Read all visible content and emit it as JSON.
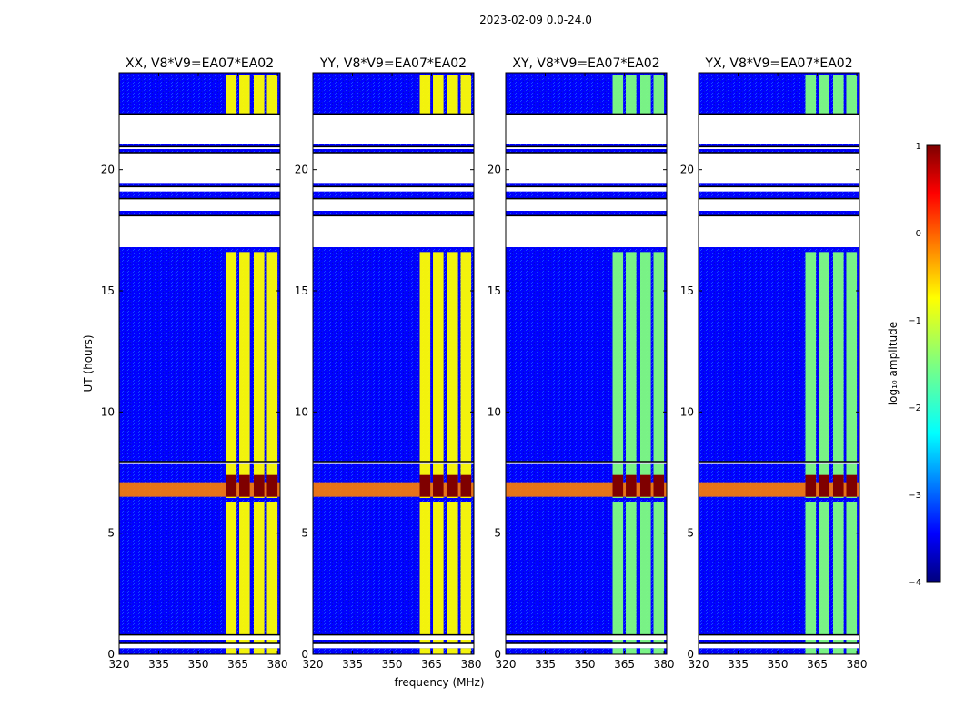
{
  "figure": {
    "suptitle": "2023-02-09 0.0-24.0",
    "xlabel": "frequency (MHz)",
    "ylabel": "UT (hours)"
  },
  "chart_data": {
    "type": "heatmap",
    "title": "2023-02-09 0.0-24.0",
    "xlabel": "frequency (MHz)",
    "ylabel": "UT (hours)",
    "xlim": [
      320,
      381
    ],
    "ylim": [
      0,
      24
    ],
    "xticks": [
      320,
      335,
      350,
      365,
      380
    ],
    "yticks": [
      0,
      5,
      10,
      15,
      20
    ],
    "panels": [
      {
        "title": "XX, V8*V9=EA07*EA02",
        "band_level": -1.1
      },
      {
        "title": "YY, V8*V9=EA07*EA02",
        "band_level": -0.6
      },
      {
        "title": "XY, V8*V9=EA07*EA02",
        "band_level": -1.3
      },
      {
        "title": "YX, V8*V9=EA07*EA02",
        "band_level": -1.4
      }
    ],
    "background_level": -3.2,
    "band_frequencies_mhz": [
      [
        360.5,
        364.5
      ],
      [
        365.5,
        369.5
      ],
      [
        371,
        375
      ],
      [
        376,
        380
      ]
    ],
    "band_active_hours": [
      [
        0,
        0.25
      ],
      [
        0.45,
        0.6
      ],
      [
        0.8,
        6.3
      ],
      [
        6.45,
        7.85
      ],
      [
        7.95,
        16.6
      ],
      [
        22.3,
        23.9
      ]
    ],
    "rfi_event": {
      "ut_start": 6.5,
      "ut_end": 7.1,
      "level": 0.9
    },
    "data_gaps_ut": [
      [
        0.25,
        0.45
      ],
      [
        0.6,
        0.8
      ],
      [
        7.85,
        7.95
      ],
      [
        16.8,
        18.1
      ],
      [
        18.3,
        18.8
      ],
      [
        19.1,
        19.3
      ],
      [
        19.45,
        20.7
      ],
      [
        20.85,
        20.95
      ],
      [
        21.05,
        22.3
      ]
    ],
    "colorbar": {
      "label": "log₁₀ amplitude",
      "min": -4,
      "max": 1,
      "ticks": [
        "1",
        "0",
        "−1",
        "−2",
        "−3",
        "−4"
      ],
      "colormap": [
        "#00007f",
        "#0000ff",
        "#007fff",
        "#00ffff",
        "#7fff7f",
        "#ffff00",
        "#ff7f00",
        "#ff0000",
        "#7f0000"
      ]
    }
  }
}
